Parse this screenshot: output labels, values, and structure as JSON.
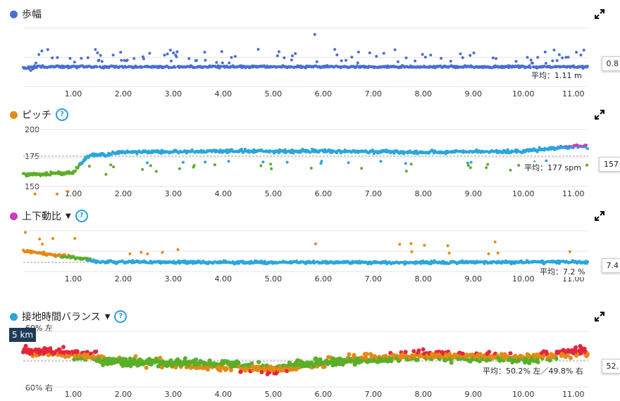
{
  "x_ticks": [
    "1.00",
    "2.00",
    "3.00",
    "4.00",
    "5.00",
    "6.00",
    "7.00",
    "8.00",
    "9.00",
    "10.00",
    "11.00"
  ],
  "colors": {
    "blue": "#4a6fd1",
    "orange": "#e38a17",
    "magenta": "#c93bc2",
    "cyan": "#2aa6d9",
    "green": "#5aae28",
    "red": "#e5243b",
    "purple": "#8a3dd0"
  },
  "panels": [
    {
      "title": "歩幅",
      "color": "#4a6fd1",
      "has_help": false,
      "has_dropdown": false,
      "avg_text": "平均：1.11 m",
      "edge_value": "0.8",
      "y_ticks": [],
      "icon": "expand-icon"
    },
    {
      "title": "ピッチ",
      "color": "#e38a17",
      "has_help": true,
      "has_dropdown": false,
      "avg_text": "平均：177 spm",
      "edge_value": "157",
      "y_ticks": [
        "200",
        "175",
        "150"
      ],
      "icon": "expand-icon"
    },
    {
      "title": "上下動比",
      "color": "#c93bc2",
      "has_help": true,
      "has_dropdown": true,
      "avg_text": "平均：7.2 %",
      "edge_value": "7.4",
      "y_ticks": [],
      "icon": "expand-icon"
    },
    {
      "title": "接地時間バランス",
      "color": "#2aa6d9",
      "has_help": true,
      "has_dropdown": true,
      "avg_text": "平均：50.2% 左／49.8% 右",
      "edge_value": "52.",
      "y_ticks": [
        "60% 左",
        "60% 右"
      ],
      "icon": "expand-icon"
    }
  ],
  "km_tooltip": "5 km",
  "chart_data": [
    {
      "type": "scatter",
      "title": "歩幅",
      "unit": "m",
      "x_label": "km",
      "xlim": [
        0,
        11.3
      ],
      "average": 1.11,
      "series": [
        {
          "name": "歩幅",
          "approx_level": 1.11,
          "spread": "low with outliers above"
        }
      ]
    },
    {
      "type": "scatter",
      "title": "ピッチ",
      "unit": "spm",
      "xlim": [
        0,
        11.3
      ],
      "ylim": [
        150,
        200
      ],
      "average": 177,
      "series": [
        {
          "approx": [
            [
              0.0,
              160
            ],
            [
              1.0,
              162
            ],
            [
              1.3,
              177
            ],
            [
              2.0,
              180
            ],
            [
              4.0,
              181
            ],
            [
              6.0,
              181
            ],
            [
              8.0,
              180
            ],
            [
              10.0,
              181
            ],
            [
              11.0,
              185
            ]
          ]
        }
      ]
    },
    {
      "type": "scatter",
      "title": "上下動比",
      "unit": "%",
      "xlim": [
        0,
        11.3
      ],
      "average": 7.2,
      "series": [
        {
          "approx": [
            [
              0.0,
              9.0
            ],
            [
              1.0,
              8.0
            ],
            [
              1.5,
              7.3
            ],
            [
              4.0,
              7.2
            ],
            [
              8.0,
              7.2
            ],
            [
              11.0,
              7.3
            ]
          ]
        }
      ]
    },
    {
      "type": "scatter",
      "title": "接地時間バランス",
      "unit": "%",
      "xlim": [
        0,
        11.3
      ],
      "average_left": 50.2,
      "average_right": 49.8,
      "series": [
        {
          "approx": [
            [
              0.0,
              51.5
            ],
            [
              1.0,
              51.2
            ],
            [
              2.0,
              50.0
            ],
            [
              4.0,
              49.6
            ],
            [
              5.0,
              49.0
            ],
            [
              6.0,
              50.0
            ],
            [
              8.0,
              51.0
            ],
            [
              10.0,
              50.5
            ],
            [
              11.0,
              51.5
            ]
          ]
        }
      ]
    }
  ]
}
